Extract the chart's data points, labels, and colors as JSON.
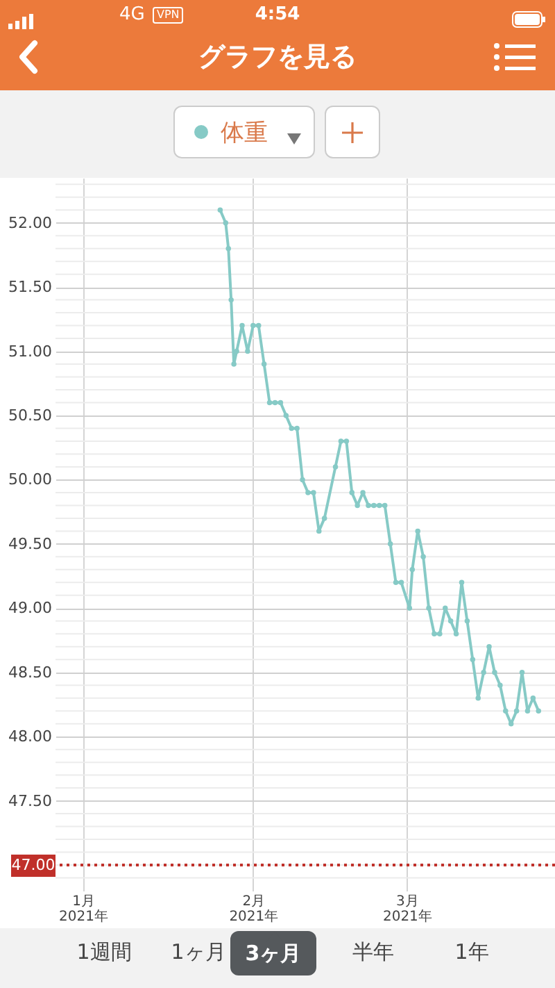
{
  "chart_data": {
    "type": "line",
    "title": "グラフを見る",
    "annotations": [
      "4:54",
      "4G",
      "VPN",
      "1週間",
      "1ヶ月",
      "3ヶ月",
      "半年",
      "1年"
    ],
    "legend": "top",
    "grid": true,
    "marker": "circle",
    "line_style": "solid",
    "xlim": [
      "2020-12-27",
      "2021-03-28"
    ],
    "xticks": [
      {
        "value": "2021-01-01",
        "label": "1月\n2021年"
      },
      {
        "value": "2021-02-01",
        "label": "2月\n2021年"
      },
      {
        "value": "2021-03-01",
        "label": "3月\n2021年"
      }
    ],
    "ylim": [
      46.8,
      52.35
    ],
    "yticks": [
      {
        "value": 46.9,
        "label": null
      },
      {
        "value": 47,
        "label": null
      },
      {
        "value": 47.1,
        "label": null
      },
      {
        "value": 47.2,
        "label": null
      },
      {
        "value": 47.3,
        "label": null
      },
      {
        "value": 47.4,
        "label": null
      },
      {
        "value": 47.5,
        "label": "47.50"
      },
      {
        "value": 47.6,
        "label": null
      },
      {
        "value": 47.7,
        "label": null
      },
      {
        "value": 47.8,
        "label": null
      },
      {
        "value": 47.9,
        "label": null
      },
      {
        "value": 48,
        "label": "48.00"
      },
      {
        "value": 48.1,
        "label": null
      },
      {
        "value": 48.2,
        "label": null
      },
      {
        "value": 48.3,
        "label": null
      },
      {
        "value": 48.4,
        "label": null
      },
      {
        "value": 48.5,
        "label": "48.50"
      },
      {
        "value": 48.6,
        "label": null
      },
      {
        "value": 48.7,
        "label": null
      },
      {
        "value": 48.8,
        "label": null
      },
      {
        "value": 48.9,
        "label": null
      },
      {
        "value": 49,
        "label": "49.00"
      },
      {
        "value": 49.1,
        "label": null
      },
      {
        "value": 49.2,
        "label": null
      },
      {
        "value": 49.3,
        "label": null
      },
      {
        "value": 49.4,
        "label": null
      },
      {
        "value": 49.5,
        "label": "49.50"
      },
      {
        "value": 49.6,
        "label": null
      },
      {
        "value": 49.7,
        "label": null
      },
      {
        "value": 49.8,
        "label": null
      },
      {
        "value": 49.9,
        "label": null
      },
      {
        "value": 50,
        "label": "50.00"
      },
      {
        "value": 50.1,
        "label": null
      },
      {
        "value": 50.2,
        "label": null
      },
      {
        "value": 50.3,
        "label": null
      },
      {
        "value": 50.4,
        "label": null
      },
      {
        "value": 50.5,
        "label": "50.50"
      },
      {
        "value": 50.6,
        "label": null
      },
      {
        "value": 50.7,
        "label": null
      },
      {
        "value": 50.8,
        "label": null
      },
      {
        "value": 50.9,
        "label": null
      },
      {
        "value": 51,
        "label": "51.00"
      },
      {
        "value": 51.1,
        "label": null
      },
      {
        "value": 51.2,
        "label": null
      },
      {
        "value": 51.3,
        "label": null
      },
      {
        "value": 51.4,
        "label": null
      },
      {
        "value": 51.5,
        "label": "51.50"
      },
      {
        "value": 51.6,
        "label": null
      },
      {
        "value": 51.7,
        "label": null
      },
      {
        "value": 51.8,
        "label": null
      },
      {
        "value": 51.9,
        "label": null
      },
      {
        "value": 52,
        "label": "52.00"
      },
      {
        "value": 52.1,
        "label": null
      },
      {
        "value": 52.2,
        "label": null
      },
      {
        "value": 52.3,
        "label": null
      }
    ],
    "ref_lines": [
      {
        "axis": "y",
        "value": 47,
        "label": "47.00",
        "color": "#c0302a",
        "line_style": "dotted"
      }
    ],
    "x": [
      "2021-01-26",
      "2021-01-27",
      "2021-01-27T12:00",
      "2021-01-28",
      "2021-01-28T12:00",
      "2021-01-29",
      "2021-01-30",
      "2021-01-31",
      "2021-02-01",
      "2021-02-02",
      "2021-02-03",
      "2021-02-04",
      "2021-02-05",
      "2021-02-06",
      "2021-02-07",
      "2021-02-08",
      "2021-02-09",
      "2021-02-10",
      "2021-02-11",
      "2021-02-12",
      "2021-02-13",
      "2021-02-14",
      "2021-02-16",
      "2021-02-17",
      "2021-02-18",
      "2021-02-19",
      "2021-02-20",
      "2021-02-21",
      "2021-02-22",
      "2021-02-23",
      "2021-02-24",
      "2021-02-25",
      "2021-02-26",
      "2021-02-27",
      "2021-02-28",
      "2021-03-01T12:00",
      "2021-03-02",
      "2021-03-03",
      "2021-03-04",
      "2021-03-05",
      "2021-03-06",
      "2021-03-07",
      "2021-03-08",
      "2021-03-09",
      "2021-03-10",
      "2021-03-11",
      "2021-03-12",
      "2021-03-13",
      "2021-03-14",
      "2021-03-15",
      "2021-03-16",
      "2021-03-17",
      "2021-03-18",
      "2021-03-19",
      "2021-03-20",
      "2021-03-21",
      "2021-03-22",
      "2021-03-23",
      "2021-03-24",
      "2021-03-25"
    ],
    "series": [
      {
        "name": "体重",
        "color": "#86cac6",
        "values": [
          52.1,
          52.0,
          51.8,
          51.4,
          50.9,
          51.0,
          51.2,
          51.0,
          51.2,
          51.2,
          50.9,
          50.6,
          50.6,
          50.6,
          50.5,
          50.4,
          50.4,
          50.0,
          49.9,
          49.9,
          49.6,
          49.7,
          50.1,
          50.3,
          50.3,
          49.9,
          49.8,
          49.9,
          49.8,
          49.8,
          49.8,
          49.8,
          49.5,
          49.2,
          49.2,
          49.0,
          49.3,
          49.6,
          49.4,
          49.0,
          48.8,
          48.8,
          49.0,
          48.9,
          48.8,
          49.2,
          48.9,
          48.6,
          48.3,
          48.5,
          48.7,
          48.5,
          48.4,
          48.2,
          48.1,
          48.2,
          48.5,
          48.2,
          48.3,
          48.2
        ]
      }
    ]
  }
}
